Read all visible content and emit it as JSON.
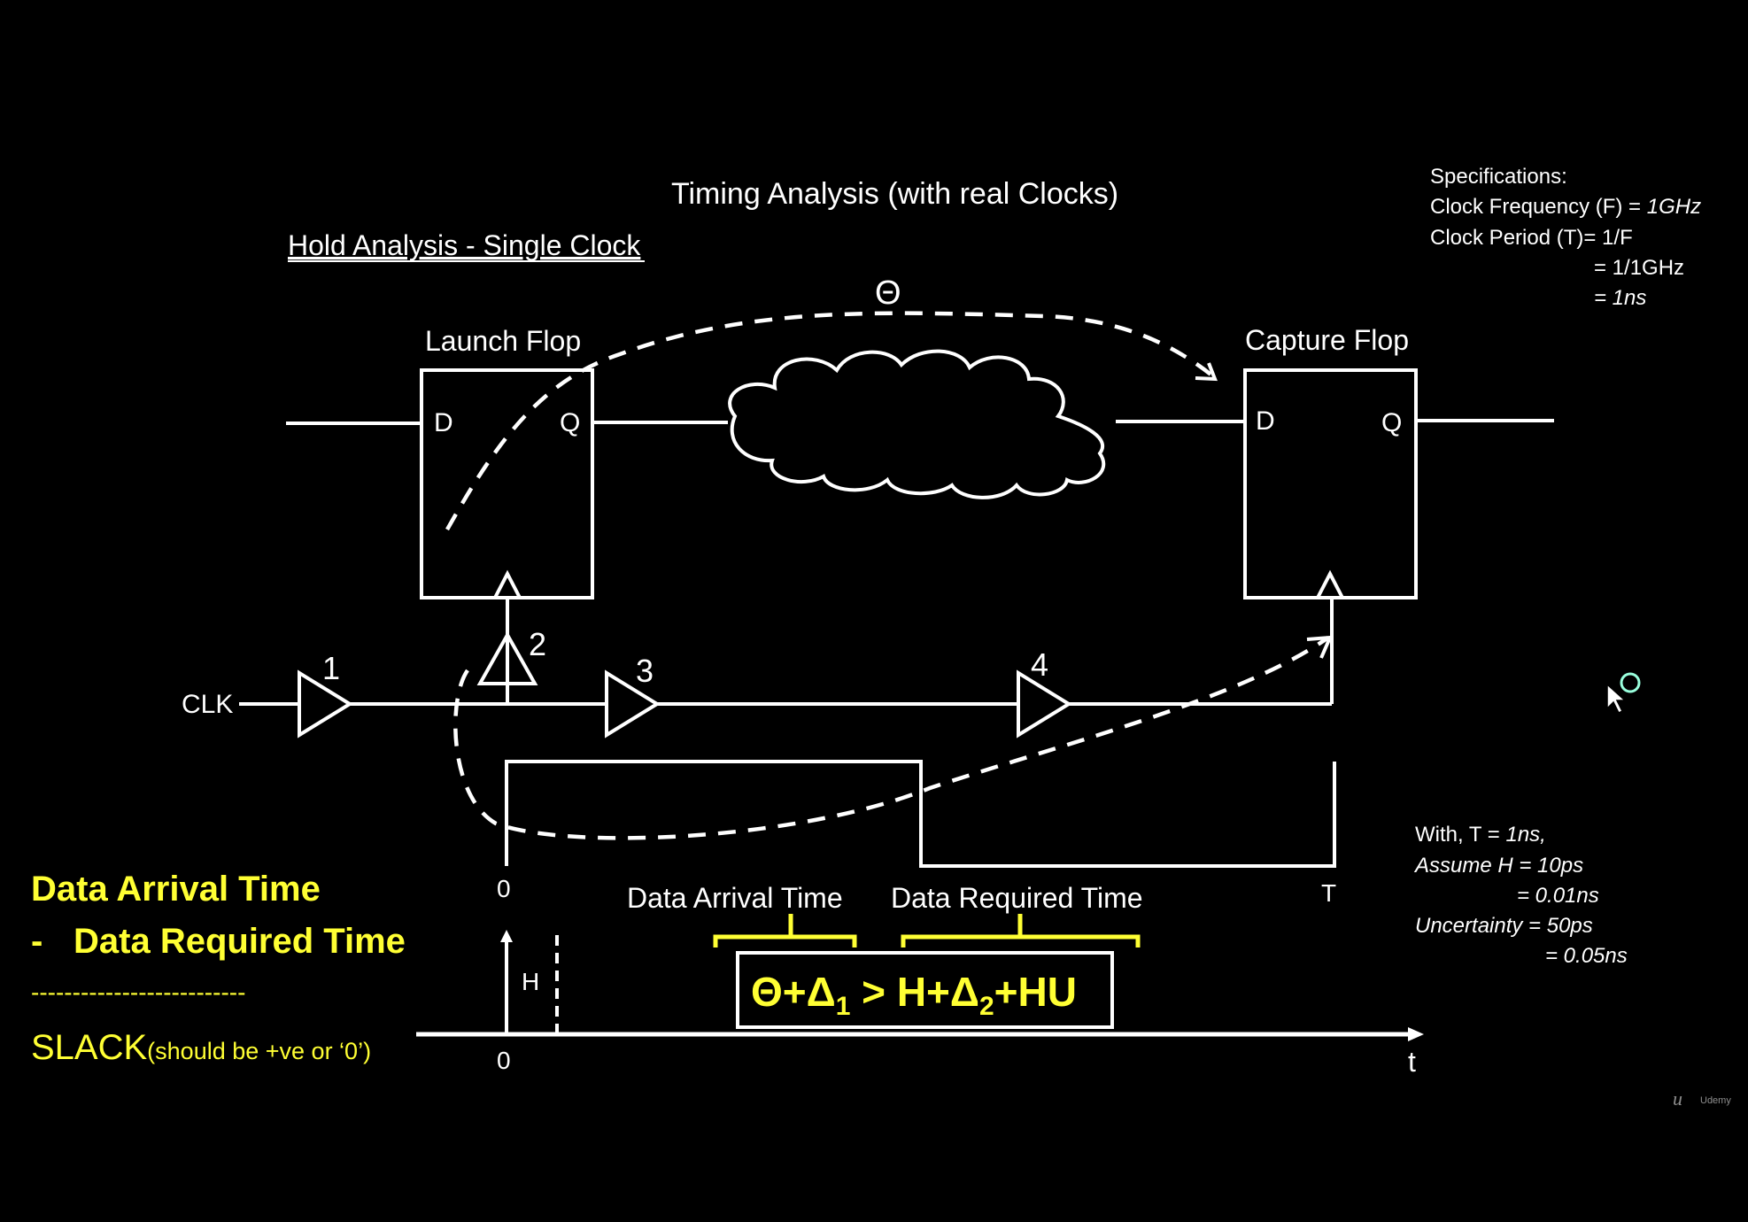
{
  "title": "Timing Analysis (with real Clocks)",
  "subtitle": "Hold Analysis - Single Clock",
  "launch_flop": {
    "label": "Launch Flop",
    "d": "D",
    "q": "Q"
  },
  "capture_flop": {
    "label": "Capture Flop",
    "d": "D",
    "q": "Q"
  },
  "theta_label": "Θ",
  "clk_label": "CLK",
  "buffers": [
    "1",
    "2",
    "3",
    "4"
  ],
  "spec": {
    "heading": "Specifications:",
    "line1_a": "Clock Frequency (F) = ",
    "line1_b": "1GHz",
    "line2": "Clock Period (T)= 1/F",
    "line3": "= 1/1GHz",
    "line4": "= 1ns"
  },
  "waveform": {
    "zero": "0",
    "T": "T"
  },
  "timeline": {
    "zero": "0",
    "t": "t",
    "H": "H",
    "data_arrival": "Data Arrival Time",
    "data_required": "Data Required Time"
  },
  "equation": {
    "lhs": "Θ+Δ",
    "lhs_sub": "1",
    "gt": " > H+Δ",
    "rhs_sub": "2",
    "rhs_end": "+HU"
  },
  "slack": {
    "line1": "Data Arrival Time",
    "minus": "-",
    "line2": "Data Required Time",
    "rule": "--------------------------",
    "big": "SLACK",
    "small": "(should be +ve or ‘0’)"
  },
  "assumptions": {
    "line1_a": "With, T = ",
    "line1_b": "1ns,",
    "line2": "Assume H = 10ps",
    "line3": "= 0.01ns",
    "line4": "Uncertainty = 50ps",
    "line5": "= 0.05ns"
  },
  "watermark": "Udemy",
  "colors": {
    "background": "#000000",
    "lines": "#ffffff",
    "highlight": "#ffff33"
  }
}
